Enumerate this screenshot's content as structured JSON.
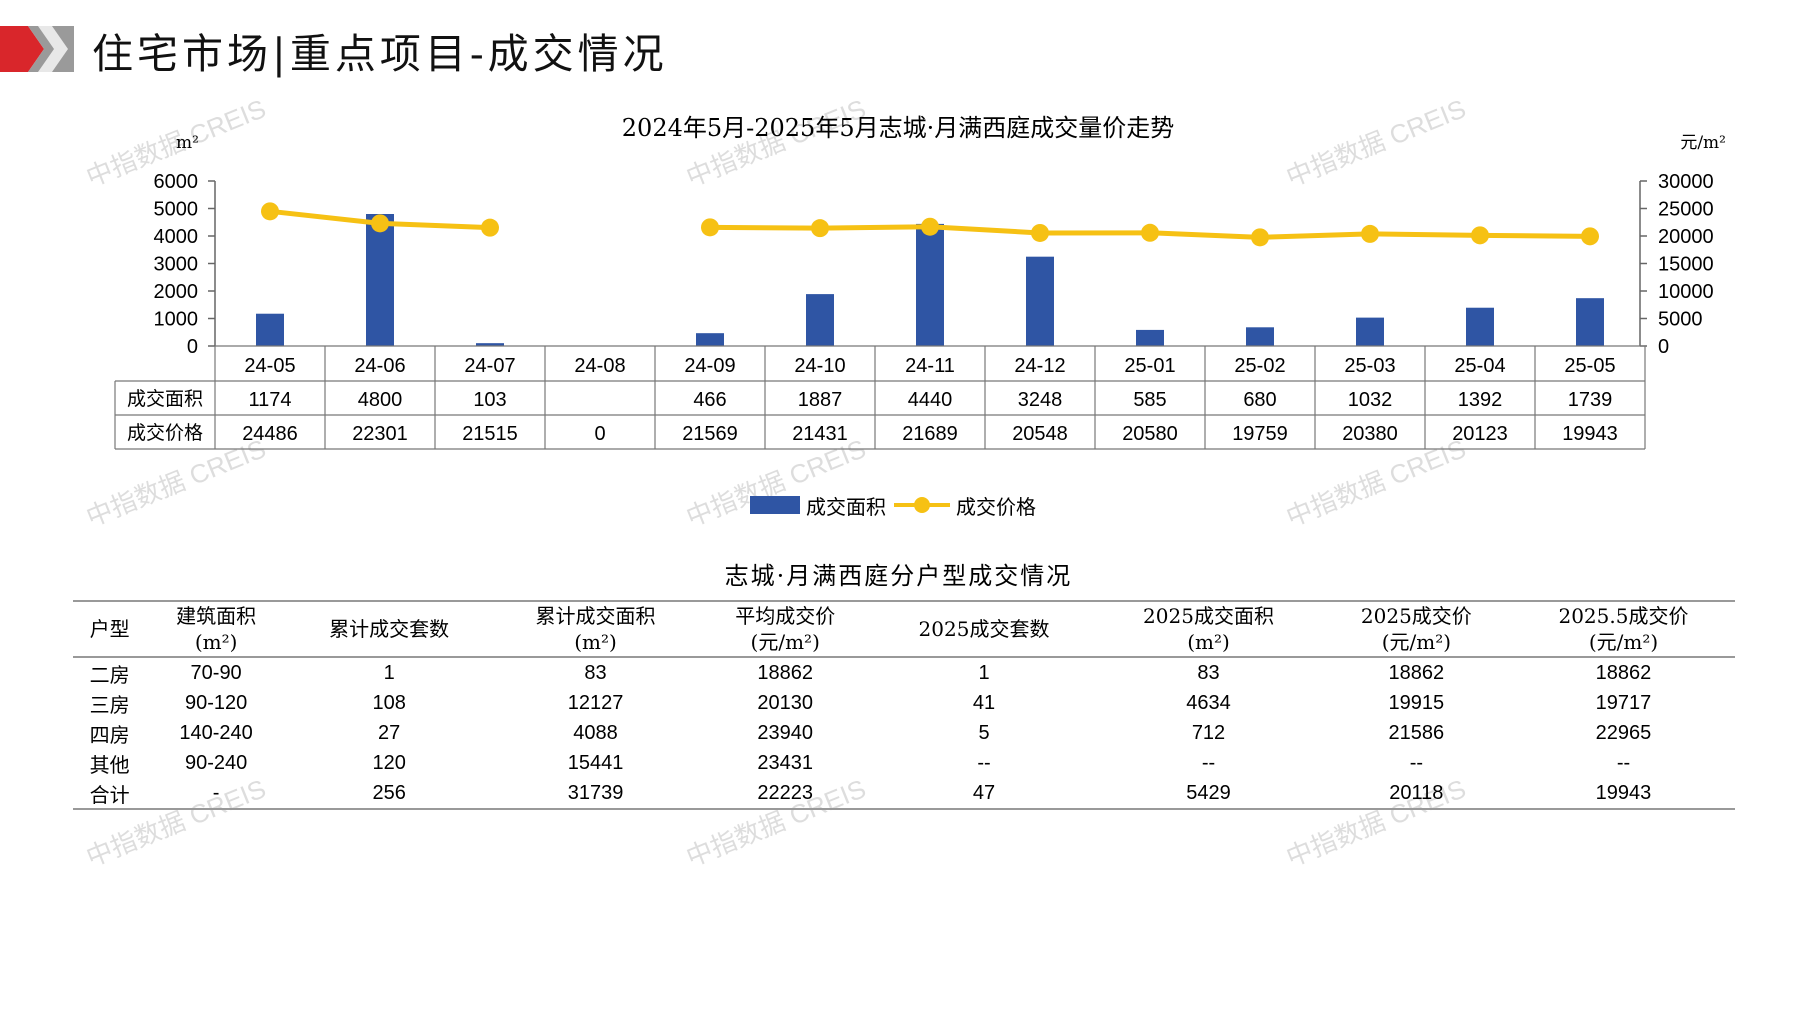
{
  "header": {
    "title": "住宅市场|重点项目-成交情况",
    "brand_colors": {
      "red": "#d9262b",
      "gray": "#9a9a9a"
    }
  },
  "watermark": "中指数据 CREIS",
  "chart_data": {
    "type": "bar+line",
    "title": "2024年5月-2025年5月志城·月满西庭成交量价走势",
    "left_unit": "m²",
    "right_unit": "元/m²",
    "categories": [
      "24-05",
      "24-06",
      "24-07",
      "24-08",
      "24-09",
      "24-10",
      "24-11",
      "24-12",
      "25-01",
      "25-02",
      "25-03",
      "25-04",
      "25-05"
    ],
    "left_ticks": [
      "6000",
      "5000",
      "4000",
      "3000",
      "2000",
      "1000",
      "0"
    ],
    "right_ticks": [
      "30000",
      "25000",
      "20000",
      "15000",
      "10000",
      "5000",
      "0"
    ],
    "ylim_left": [
      0,
      6000
    ],
    "ylim_right": [
      0,
      30000
    ],
    "series": [
      {
        "name": "成交面积",
        "type": "bar",
        "axis": "left",
        "color": "#2f55a4",
        "values": [
          1174,
          4800,
          103,
          null,
          466,
          1887,
          4440,
          3248,
          585,
          680,
          1032,
          1392,
          1739
        ]
      },
      {
        "name": "成交价格",
        "type": "line",
        "axis": "right",
        "color": "#f6c114",
        "values": [
          24486,
          22301,
          21515,
          0,
          21569,
          21431,
          21689,
          20548,
          20580,
          19759,
          20380,
          20123,
          19943
        ]
      }
    ],
    "data_table": [
      {
        "label": "成交面积",
        "cells": [
          "1174",
          "4800",
          "103",
          "",
          "466",
          "1887",
          "4440",
          "3248",
          "585",
          "680",
          "1032",
          "1392",
          "1739"
        ]
      },
      {
        "label": "成交价格",
        "cells": [
          "24486",
          "22301",
          "21515",
          "0",
          "21569",
          "21431",
          "21689",
          "20548",
          "20580",
          "19759",
          "20380",
          "20123",
          "19943"
        ]
      }
    ],
    "legend": {
      "position": "bottom",
      "items": [
        "成交面积",
        "成交价格"
      ]
    }
  },
  "unit_table": {
    "title": "志城·月满西庭分户型成交情况",
    "headers": [
      {
        "l1": "户型",
        "l2": ""
      },
      {
        "l1": "建筑面积",
        "l2": "(m²)"
      },
      {
        "l1": "累计成交套数",
        "l2": ""
      },
      {
        "l1": "累计成交面积",
        "l2": "(m²)"
      },
      {
        "l1": "平均成交价",
        "l2": "(元/m²)"
      },
      {
        "l1": "2025成交套数",
        "l2": ""
      },
      {
        "l1": "2025成交面积",
        "l2": "(m²)"
      },
      {
        "l1": "2025成交价",
        "l2": "(元/m²)"
      },
      {
        "l1": "2025.5成交价",
        "l2": "(元/m²)"
      }
    ],
    "rows": [
      [
        "二房",
        "70-90",
        "1",
        "83",
        "18862",
        "1",
        "83",
        "18862",
        "18862"
      ],
      [
        "三房",
        "90-120",
        "108",
        "12127",
        "20130",
        "41",
        "4634",
        "19915",
        "19717"
      ],
      [
        "四房",
        "140-240",
        "27",
        "4088",
        "23940",
        "5",
        "712",
        "21586",
        "22965"
      ],
      [
        "其他",
        "90-240",
        "120",
        "15441",
        "23431",
        "--",
        "--",
        "--",
        "--"
      ],
      [
        "合计",
        "-",
        "256",
        "31739",
        "22223",
        "47",
        "5429",
        "20118",
        "19943"
      ]
    ]
  }
}
